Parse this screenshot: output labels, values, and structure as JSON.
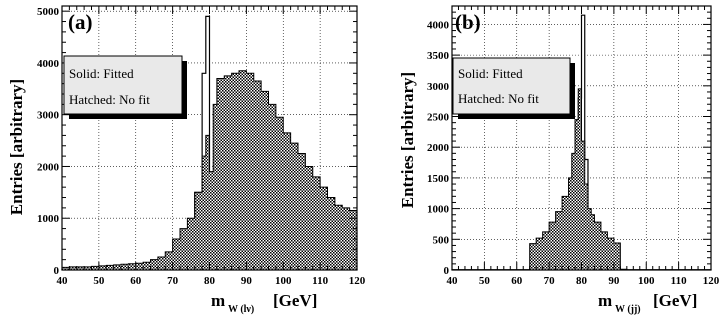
{
  "chart_data": [
    {
      "type": "histogram",
      "panel_label": "(a)",
      "ylabel": "Entries [arbitrary]",
      "xlabel": "m",
      "xlabel_sub": "W (lν)",
      "xlabel_unit": "[GeV]",
      "xlim": [
        40,
        120
      ],
      "ylim": [
        0,
        5100
      ],
      "xticks": [
        "40",
        "50",
        "60",
        "70",
        "80",
        "90",
        "100",
        "110",
        "120"
      ],
      "yticks": [
        "0",
        "1000",
        "2000",
        "3000",
        "4000",
        "5000"
      ],
      "grid": true,
      "legend": {
        "placement": "top-left",
        "lines": [
          "Solid: Fitted",
          "Hatched: No fit"
        ]
      },
      "bin_edges": [
        40,
        42,
        44,
        46,
        48,
        50,
        52,
        54,
        56,
        58,
        60,
        62,
        64,
        66,
        68,
        70,
        72,
        74,
        76,
        78,
        79,
        80,
        81,
        82,
        84,
        86,
        88,
        90,
        92,
        94,
        96,
        98,
        100,
        102,
        104,
        106,
        108,
        110,
        112,
        114,
        116,
        118,
        120
      ],
      "series": [
        {
          "name": "Fitted",
          "style": "solid",
          "values": [
            10,
            10,
            10,
            10,
            10,
            10,
            10,
            10,
            10,
            10,
            15,
            20,
            25,
            35,
            50,
            80,
            150,
            400,
            1500,
            3800,
            4900,
            1500,
            350,
            150,
            80,
            60,
            45,
            35,
            30,
            25,
            20,
            18,
            15,
            12,
            10,
            8,
            6,
            5,
            4,
            3,
            2,
            1
          ]
        },
        {
          "name": "No fit",
          "style": "hatched",
          "values": [
            50,
            60,
            60,
            60,
            70,
            80,
            90,
            100,
            110,
            120,
            130,
            150,
            200,
            250,
            350,
            600,
            800,
            1000,
            1500,
            2200,
            2600,
            1900,
            3200,
            3700,
            3750,
            3800,
            3850,
            3800,
            3650,
            3450,
            3200,
            2950,
            2650,
            2450,
            2250,
            2000,
            1800,
            1600,
            1400,
            1250,
            1200,
            1150
          ]
        }
      ]
    },
    {
      "type": "histogram",
      "panel_label": "(b)",
      "ylabel": "Entries [arbitrary]",
      "xlabel": "m",
      "xlabel_sub": "W (jj)",
      "xlabel_unit": "[GeV]",
      "xlim": [
        40,
        120
      ],
      "ylim": [
        0,
        4300
      ],
      "xticks": [
        "40",
        "50",
        "60",
        "70",
        "80",
        "90",
        "100",
        "110",
        "120"
      ],
      "yticks": [
        "0",
        "500",
        "1000",
        "1500",
        "2000",
        "2500",
        "3000",
        "3500",
        "4000"
      ],
      "grid": true,
      "legend": {
        "placement": "top-left",
        "lines": [
          "Solid: Fitted",
          "Hatched: No fit"
        ]
      },
      "bin_edges": [
        40,
        42,
        44,
        46,
        48,
        50,
        52,
        54,
        56,
        58,
        60,
        62,
        64,
        66,
        68,
        70,
        72,
        74,
        76,
        77,
        78,
        79,
        80,
        81,
        82,
        83,
        84,
        86,
        88,
        90,
        92,
        94,
        96,
        98,
        100,
        102,
        104,
        106,
        108,
        110,
        112,
        114,
        116,
        118,
        120
      ],
      "series": [
        {
          "name": "Fitted",
          "style": "solid",
          "values": [
            5,
            5,
            5,
            5,
            5,
            5,
            5,
            5,
            5,
            5,
            5,
            5,
            10,
            15,
            20,
            30,
            60,
            150,
            400,
            800,
            1800,
            2800,
            4150,
            1800,
            600,
            250,
            100,
            50,
            30,
            20,
            10,
            5,
            5,
            5,
            5,
            5,
            5,
            5,
            5,
            5,
            5,
            5,
            5,
            5
          ]
        },
        {
          "name": "No fit",
          "style": "hatched",
          "values": [
            0,
            0,
            0,
            0,
            0,
            0,
            0,
            0,
            0,
            0,
            0,
            0,
            430,
            520,
            620,
            780,
            950,
            1200,
            1500,
            1900,
            2450,
            2950,
            2100,
            1400,
            1000,
            900,
            780,
            620,
            520,
            440,
            0,
            0,
            0,
            0,
            0,
            0,
            0,
            0,
            0,
            0,
            0,
            0,
            0,
            0
          ]
        }
      ]
    }
  ]
}
